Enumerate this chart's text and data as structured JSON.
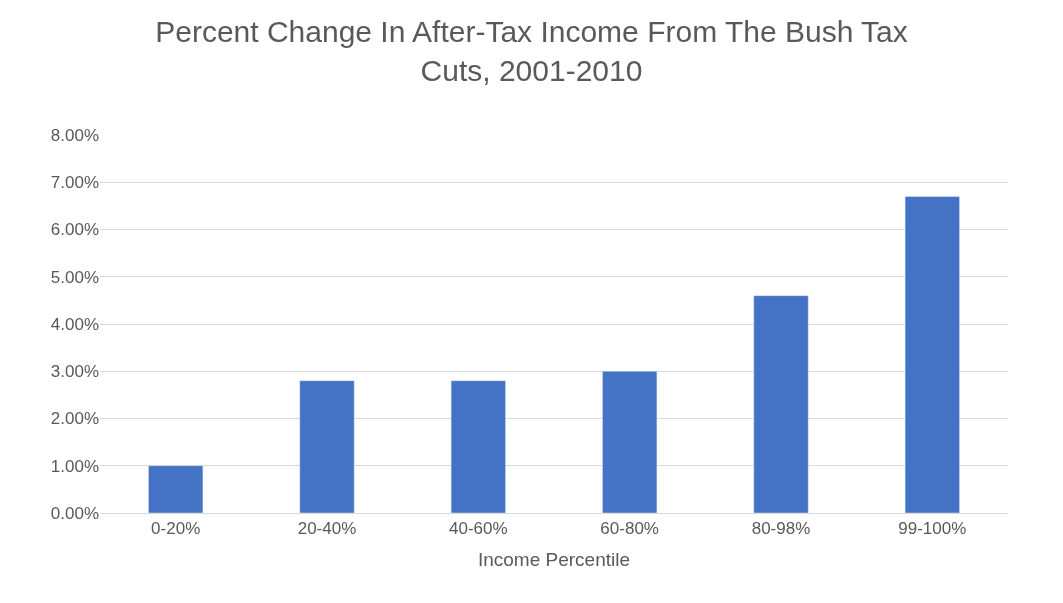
{
  "chart_data": {
    "type": "bar",
    "title": "Percent Change In After-Tax Income From The Bush Tax Cuts, 2001-2010",
    "xlabel": "Income Percentile",
    "categories": [
      "0-20%",
      "20-40%",
      "40-60%",
      "60-80%",
      "80-98%",
      "99-100%"
    ],
    "values": [
      1.0,
      2.8,
      2.8,
      3.0,
      4.6,
      6.7
    ],
    "color": "#4472c4",
    "ylim": [
      0,
      8
    ],
    "yticks": [
      {
        "value": 0,
        "label": "0.00%"
      },
      {
        "value": 1,
        "label": "1.00%"
      },
      {
        "value": 2,
        "label": "2.00%"
      },
      {
        "value": 3,
        "label": "3.00%"
      },
      {
        "value": 4,
        "label": "4.00%"
      },
      {
        "value": 5,
        "label": "5.00%"
      },
      {
        "value": 6,
        "label": "6.00%"
      },
      {
        "value": 7,
        "label": "7.00%"
      },
      {
        "value": 8,
        "label": "8.00%"
      }
    ],
    "grid": "y"
  }
}
